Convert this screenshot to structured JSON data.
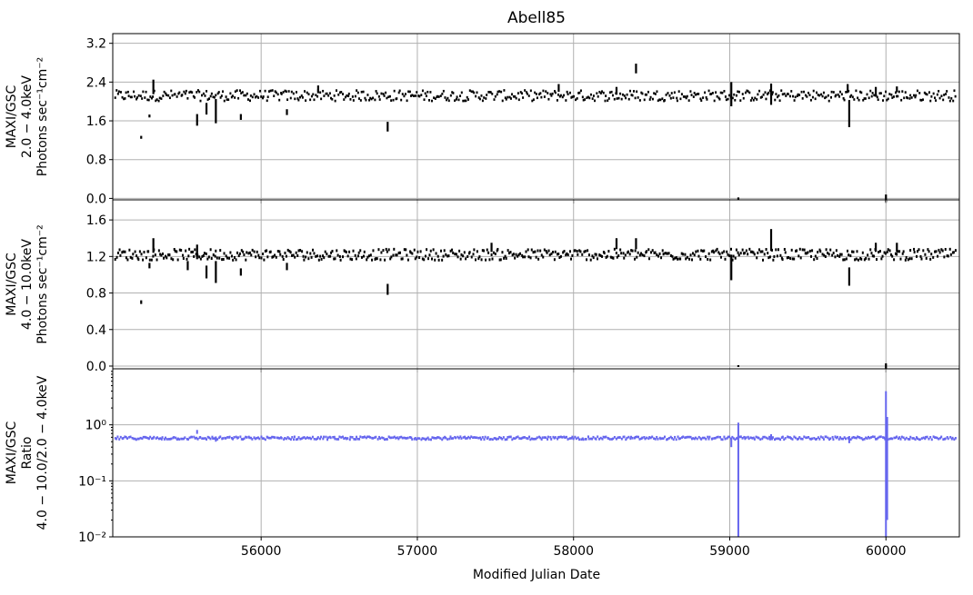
{
  "chart_data": {
    "type": "scatter",
    "title": "Abell85",
    "xlabel": "Modified Julian Date",
    "xlim": [
      55050,
      60470
    ],
    "x_ticks": [
      "56000",
      "57000",
      "58000",
      "59000",
      "60000"
    ],
    "grid": true,
    "colors": {
      "points": "#000000",
      "ratio": "#6666ee"
    },
    "panels": [
      {
        "name": "soft",
        "ylabel_lines": [
          "MAXI/GSC",
          "2.0 − 4.0keV",
          "Photons sec⁻¹cm⁻²"
        ],
        "ylim": [
          -0.03,
          3.4
        ],
        "y_ticks": [
          "0.0",
          "0.8",
          "1.6",
          "2.4",
          "3.2"
        ],
        "baseline": 2.12,
        "outliers": [
          {
            "x": 55232,
            "y": 1.26,
            "err": 0.03
          },
          {
            "x": 55285,
            "y": 1.7,
            "err": 0.03
          },
          {
            "x": 55310,
            "y": 2.3,
            "err": 0.15
          },
          {
            "x": 55590,
            "y": 1.62,
            "err": 0.12
          },
          {
            "x": 55650,
            "y": 1.85,
            "err": 0.12
          },
          {
            "x": 55710,
            "y": 1.8,
            "err": 0.25
          },
          {
            "x": 55870,
            "y": 1.68,
            "err": 0.06
          },
          {
            "x": 56165,
            "y": 1.78,
            "err": 0.06
          },
          {
            "x": 56365,
            "y": 2.25,
            "err": 0.08
          },
          {
            "x": 56810,
            "y": 1.48,
            "err": 0.1
          },
          {
            "x": 57905,
            "y": 2.28,
            "err": 0.08
          },
          {
            "x": 58275,
            "y": 2.22,
            "err": 0.08
          },
          {
            "x": 58400,
            "y": 2.68,
            "err": 0.1
          },
          {
            "x": 59010,
            "y": 2.15,
            "err": 0.25
          },
          {
            "x": 59055,
            "y": 0.0,
            "err": 0.02
          },
          {
            "x": 59265,
            "y": 2.15,
            "err": 0.22
          },
          {
            "x": 59765,
            "y": 1.75,
            "err": 0.28
          },
          {
            "x": 59755,
            "y": 2.28,
            "err": 0.08
          },
          {
            "x": 59935,
            "y": 2.2,
            "err": 0.1
          },
          {
            "x": 60000,
            "y": 0.0,
            "err": 0.08
          },
          {
            "x": 60070,
            "y": 2.25,
            "err": 0.06
          }
        ]
      },
      {
        "name": "hard",
        "ylabel_lines": [
          "MAXI/GSC",
          "4.0 − 10.0keV",
          "Photons sec⁻¹cm⁻²"
        ],
        "ylim": [
          -0.03,
          1.82
        ],
        "y_ticks": [
          "0.0",
          "0.4",
          "0.8",
          "1.2",
          "1.6"
        ],
        "baseline": 1.22,
        "outliers": [
          {
            "x": 55232,
            "y": 0.7,
            "err": 0.02
          },
          {
            "x": 55285,
            "y": 1.1,
            "err": 0.03
          },
          {
            "x": 55310,
            "y": 1.32,
            "err": 0.08
          },
          {
            "x": 55530,
            "y": 1.1,
            "err": 0.05
          },
          {
            "x": 55590,
            "y": 1.25,
            "err": 0.08
          },
          {
            "x": 55650,
            "y": 1.03,
            "err": 0.07
          },
          {
            "x": 55710,
            "y": 1.03,
            "err": 0.12
          },
          {
            "x": 55870,
            "y": 1.03,
            "err": 0.04
          },
          {
            "x": 56165,
            "y": 1.09,
            "err": 0.04
          },
          {
            "x": 56810,
            "y": 0.84,
            "err": 0.06
          },
          {
            "x": 57475,
            "y": 1.3,
            "err": 0.05
          },
          {
            "x": 58275,
            "y": 1.34,
            "err": 0.06
          },
          {
            "x": 58400,
            "y": 1.34,
            "err": 0.06
          },
          {
            "x": 59010,
            "y": 1.08,
            "err": 0.14
          },
          {
            "x": 59055,
            "y": 0.0,
            "err": 0.01
          },
          {
            "x": 59265,
            "y": 1.38,
            "err": 0.12
          },
          {
            "x": 59765,
            "y": 0.98,
            "err": 0.1
          },
          {
            "x": 59935,
            "y": 1.3,
            "err": 0.05
          },
          {
            "x": 60000,
            "y": 0.0,
            "err": 0.03
          },
          {
            "x": 60070,
            "y": 1.3,
            "err": 0.05
          }
        ]
      },
      {
        "name": "ratio",
        "scale": "log",
        "ylabel_lines": [
          "MAXI/GSC",
          "Ratio",
          "4.0 − 10.0/2.0 − 4.0keV"
        ],
        "ylim": [
          0.01,
          10
        ],
        "y_ticks": [
          "10⁰",
          "10⁻¹",
          "10⁻²"
        ],
        "y_tick_values": [
          1,
          0.1,
          0.01
        ],
        "baseline": 0.58,
        "outliers": [
          {
            "x": 55590,
            "y": 0.75,
            "err": 0.06
          },
          {
            "x": 55710,
            "y": 0.56,
            "err": 0.06
          },
          {
            "x": 59010,
            "y": 0.48,
            "err": 0.08
          },
          {
            "x": 59055,
            "y": 0.55,
            "err": 0.545
          },
          {
            "x": 59265,
            "y": 0.62,
            "err": 0.06
          },
          {
            "x": 59765,
            "y": 0.55,
            "err": 0.08
          },
          {
            "x": 60000,
            "y": 2.0,
            "err": 1.99
          },
          {
            "x": 60008,
            "y": 0.7,
            "err": 0.68
          }
        ]
      }
    ]
  }
}
